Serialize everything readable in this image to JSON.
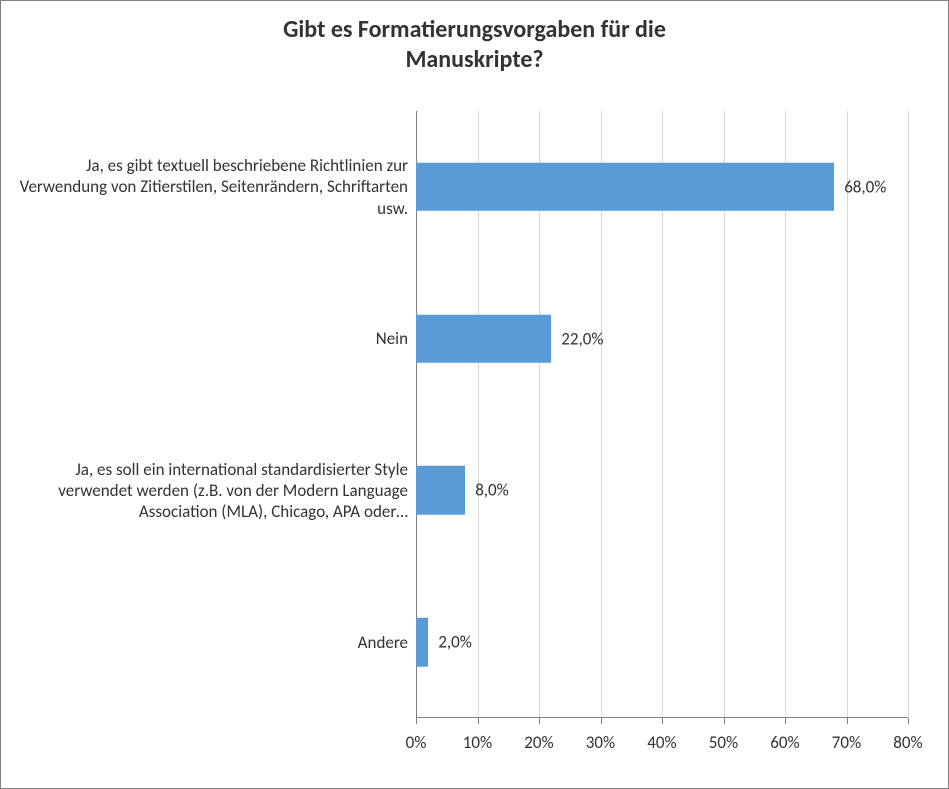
{
  "chart": {
    "type": "bar",
    "orientation": "horizontal",
    "title_line1": "Gibt es Formatierungsvorgaben für die",
    "title_line2": "Manuskripte?",
    "title_fontsize": 24,
    "title_weight": "bold",
    "title_color": "#333333",
    "background_color": "#ffffff",
    "border_color": "#808080",
    "categories": [
      "Ja, es gibt textuell beschriebene Richtlinien zur Verwendung von Zitierstilen, Seitenrändern, Schriftarten usw.",
      "Nein",
      "Ja, es soll ein international standardisierter Style verwendet werden (z.B. von der Modern Language Association (MLA), Chicago, APA oder…",
      "Andere"
    ],
    "values": [
      68.0,
      22.0,
      8.0,
      2.0
    ],
    "value_labels": [
      "68,0%",
      "22,0%",
      "8,0%",
      "2,0%"
    ],
    "bar_color": "#5b9bd5",
    "bar_height_ratio": 0.32,
    "xlim": [
      0,
      80
    ],
    "xtick_step": 10,
    "xtick_labels": [
      "0%",
      "10%",
      "20%",
      "30%",
      "40%",
      "50%",
      "60%",
      "70%",
      "80%"
    ],
    "grid_color": "#d9d9d9",
    "axis_color": "#808080",
    "label_fontsize": 17,
    "tick_fontsize": 17,
    "value_fontsize": 17
  }
}
